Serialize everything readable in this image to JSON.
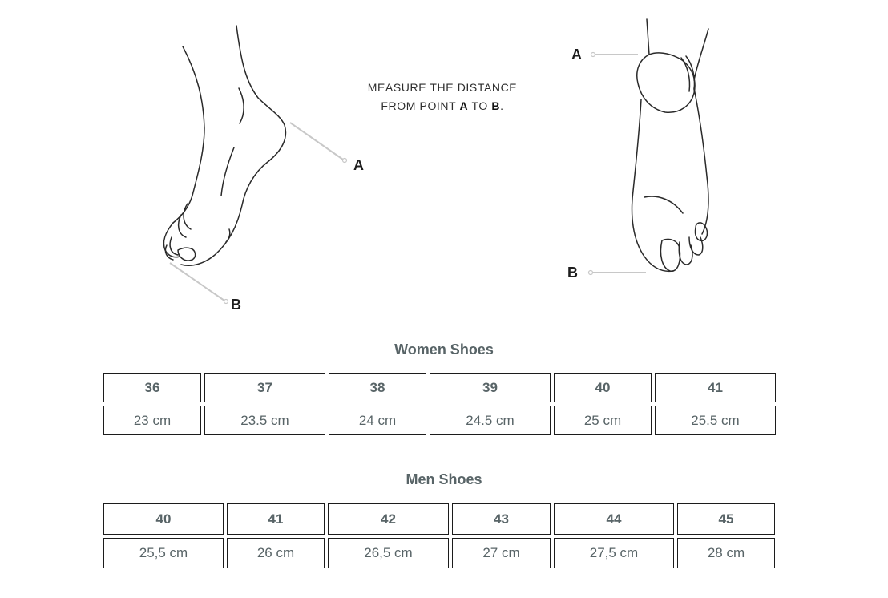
{
  "illustration": {
    "instruction_line1": "MEASURE THE DISTANCE",
    "instruction_line2_prefix": "FROM POINT ",
    "point_a": "A",
    "instruction_line2_mid": " TO ",
    "point_b": "B",
    "instruction_line2_suffix": ".",
    "side_label_a": "A",
    "side_label_b": "B",
    "sole_label_a": "A",
    "sole_label_b": "B",
    "icons": [
      "foot-side-view-icon",
      "foot-sole-view-icon"
    ]
  },
  "women": {
    "title": "Women Shoes",
    "sizes": [
      "36",
      "37",
      "38",
      "39",
      "40",
      "41"
    ],
    "lengths": [
      "23 cm",
      "23.5 cm",
      "24 cm",
      "24.5 cm",
      "25 cm",
      "25.5 cm"
    ]
  },
  "men": {
    "title": "Men Shoes",
    "sizes": [
      "40",
      "41",
      "42",
      "43",
      "44",
      "45"
    ],
    "lengths": [
      "25,5 cm",
      "26 cm",
      "26,5 cm",
      "27 cm",
      "27,5 cm",
      "28 cm"
    ]
  },
  "colors": {
    "text": "#586467",
    "border": "#1c1c1c",
    "drawing_stroke": "#2a2a2a",
    "leader_line": "#c8c8c8"
  }
}
